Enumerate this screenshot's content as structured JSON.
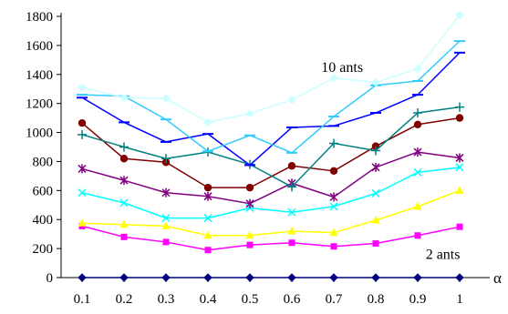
{
  "chart_data": {
    "type": "line",
    "x": [
      0.1,
      0.2,
      0.3,
      0.4,
      0.5,
      0.6,
      0.7,
      0.8,
      0.9,
      1
    ],
    "x_tick_labels": [
      "0.1",
      "0.2",
      "0.3",
      "0.4",
      "0.5",
      "0.6",
      "0.7",
      "0.8",
      "0.9",
      "1"
    ],
    "y_ticks": [
      0,
      200,
      400,
      600,
      800,
      1000,
      1200,
      1400,
      1600,
      1800
    ],
    "ylim": [
      0,
      1800
    ],
    "xlabel": "α",
    "ylabel": "",
    "title": "",
    "grid": false,
    "legend": "none",
    "annotations": [
      {
        "text": "10 ants",
        "x": 0.72,
        "y": 1450
      },
      {
        "text": "2 ants",
        "x": 0.96,
        "y": 160
      }
    ],
    "series": [
      {
        "color": "#000080",
        "marker": "diamond",
        "values": [
          0,
          0,
          0,
          0,
          0,
          0,
          0,
          0,
          0,
          0
        ]
      },
      {
        "color": "#ff00ff",
        "marker": "square",
        "values": [
          355,
          280,
          245,
          190,
          225,
          240,
          215,
          235,
          290,
          350
        ]
      },
      {
        "color": "#ffff00",
        "marker": "triangle",
        "values": [
          375,
          365,
          355,
          290,
          290,
          320,
          310,
          395,
          490,
          600
        ]
      },
      {
        "color": "#00ffff",
        "marker": "x",
        "values": [
          585,
          515,
          410,
          410,
          480,
          450,
          490,
          580,
          725,
          760
        ]
      },
      {
        "color": "#800080",
        "marker": "asterisk",
        "values": [
          750,
          670,
          585,
          560,
          510,
          650,
          555,
          760,
          865,
          825
        ]
      },
      {
        "color": "#800000",
        "marker": "circle",
        "values": [
          1065,
          820,
          795,
          620,
          620,
          770,
          735,
          905,
          1055,
          1100
        ]
      },
      {
        "color": "#008080",
        "marker": "plus",
        "values": [
          985,
          900,
          820,
          865,
          780,
          625,
          925,
          875,
          1135,
          1175
        ]
      },
      {
        "color": "#0000ff",
        "marker": "dash",
        "values": [
          1240,
          1070,
          935,
          990,
          775,
          1035,
          1045,
          1135,
          1260,
          1550
        ]
      },
      {
        "color": "#33ccff",
        "marker": "dash",
        "values": [
          1260,
          1250,
          1090,
          870,
          980,
          860,
          1110,
          1325,
          1355,
          1630
        ]
      },
      {
        "color": "#ccffff",
        "marker": "diamond",
        "values": [
          1310,
          1240,
          1235,
          1070,
          1130,
          1225,
          1375,
          1345,
          1440,
          1810
        ]
      }
    ]
  }
}
